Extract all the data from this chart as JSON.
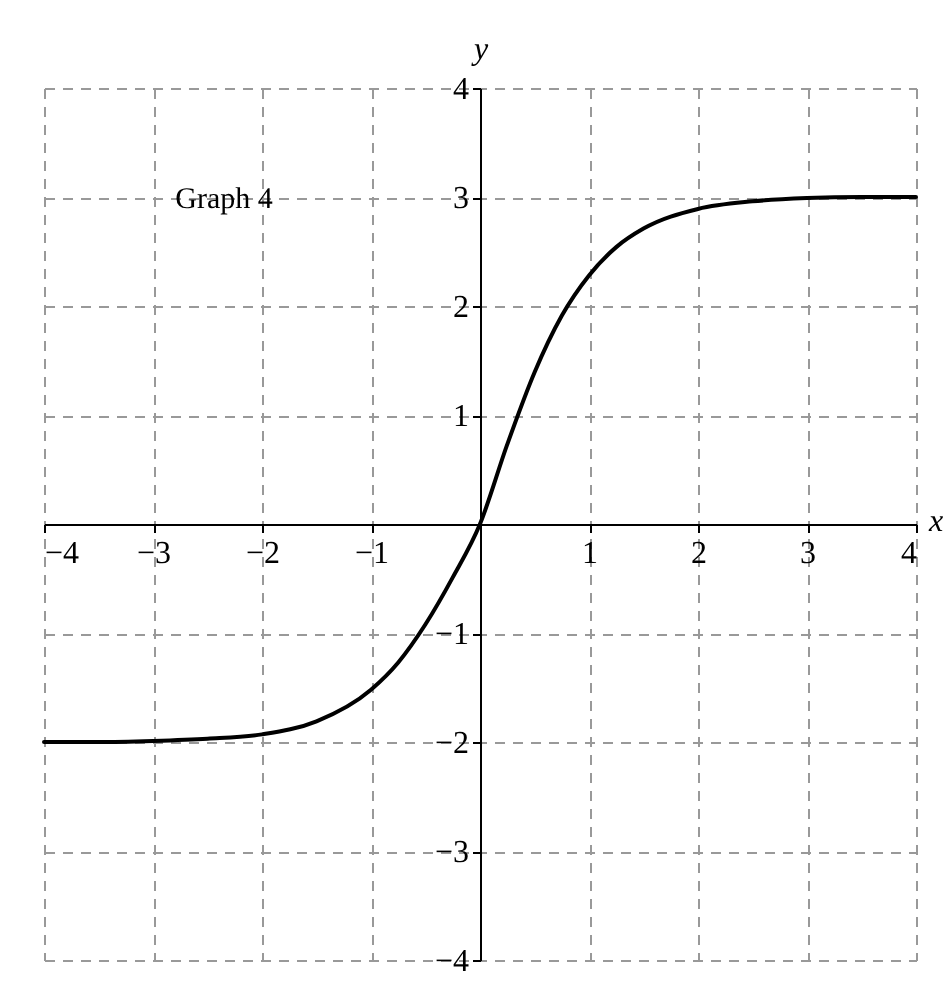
{
  "chart_data": {
    "type": "line",
    "xlabel": "x",
    "ylabel": "y",
    "annotations": [
      "Graph 4"
    ],
    "x": [
      -4,
      -3.5,
      -3,
      -2.5,
      -2,
      -1.5,
      -1,
      -0.75,
      -0.5,
      -0.25,
      0,
      0.25,
      0.5,
      0.75,
      1,
      1.25,
      1.5,
      2,
      2.5,
      3,
      3.5,
      4
    ],
    "series": [
      {
        "color": "#000000",
        "values": [
          -2.0,
          -2.0,
          -1.99,
          -1.97,
          -1.93,
          -1.81,
          -1.52,
          -1.27,
          -0.92,
          -0.49,
          0,
          0.73,
          1.39,
          1.91,
          2.28,
          2.54,
          2.71,
          2.89,
          2.96,
          2.99,
          3.0,
          3.0
        ]
      }
    ],
    "xlim": [
      -4,
      4
    ],
    "ylim": [
      -4,
      4
    ],
    "xticks": [
      -4,
      -3,
      -2,
      -1,
      1,
      2,
      3,
      4
    ],
    "yticks": [
      -4,
      -3,
      -2,
      -1,
      1,
      2,
      3,
      4
    ],
    "grid": true,
    "line_style": "solid"
  }
}
